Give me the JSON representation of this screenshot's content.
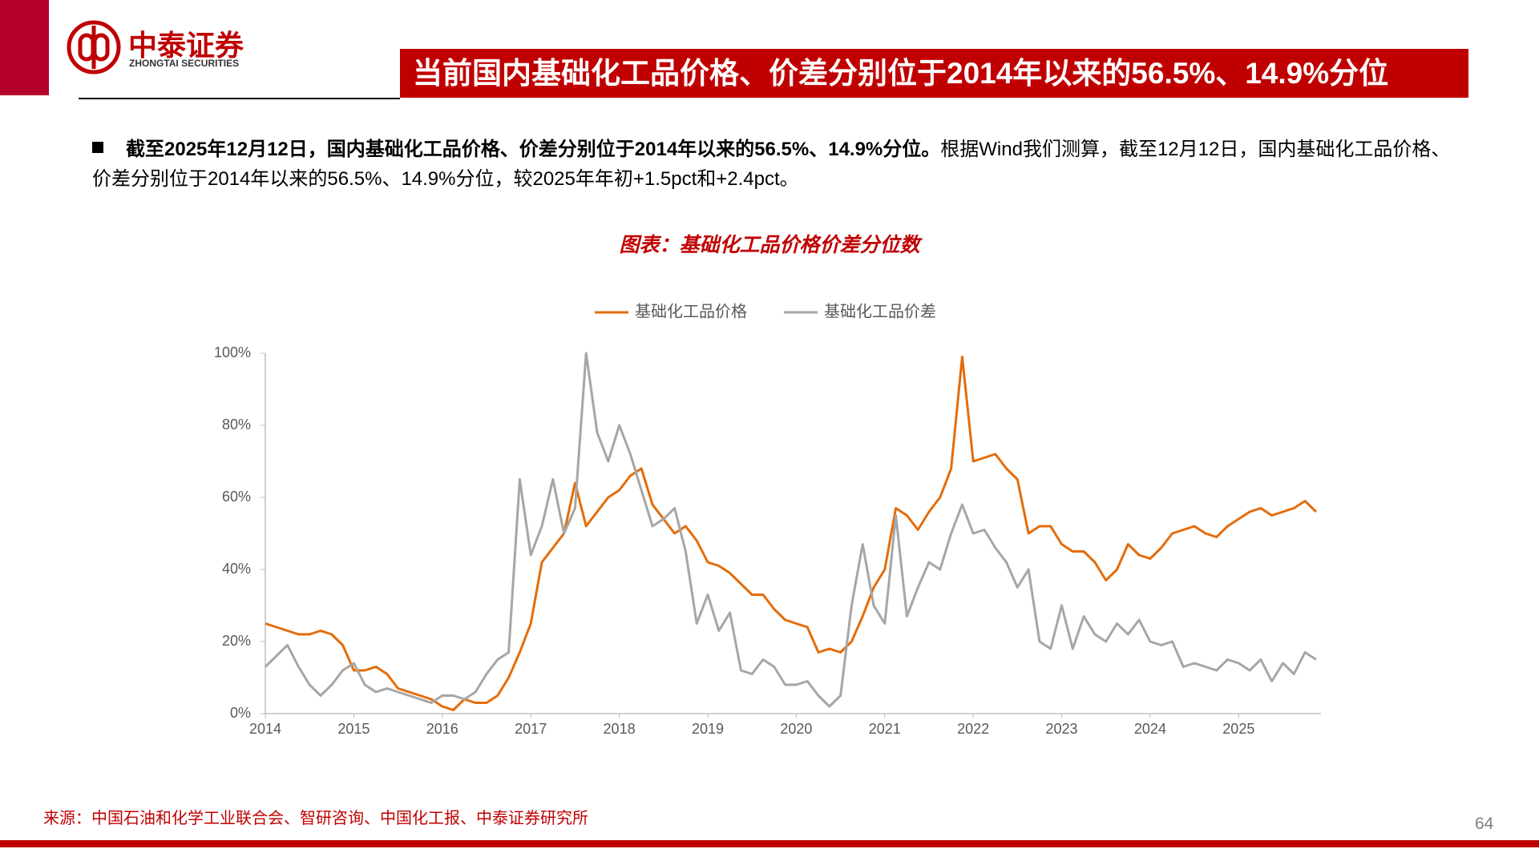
{
  "header": {
    "company": "中泰证券",
    "company_en": "ZHONGTAI SECURITIES",
    "title": "当前国内基础化工品价格、价差分别位于2014年以来的56.5%、14.9%分位"
  },
  "bullet": {
    "bold": "截至2025年12月12日，国内基础化工品价格、价差分别位于2014年以来的56.5%、14.9%分位。",
    "text": "根据Wind我们测算，截至12月12日，国内基础化工品价格、价差分别位于2014年以来的56.5%、14.9%分位，较2025年年初+1.5pct和+2.4pct。"
  },
  "chart_caption": "图表：基础化工品价格价差分位数",
  "source": "来源：中国石油和化学工业联合会、智研咨询、中国化工报、中泰证券研究所",
  "page_number": "64",
  "chart_data": {
    "type": "line",
    "x": [
      2014,
      2014.125,
      2014.25,
      2014.375,
      2014.5,
      2014.625,
      2014.75,
      2014.875,
      2015,
      2015.125,
      2015.25,
      2015.375,
      2015.5,
      2015.625,
      2015.75,
      2015.875,
      2016,
      2016.125,
      2016.25,
      2016.375,
      2016.5,
      2016.625,
      2016.75,
      2016.875,
      2017,
      2017.125,
      2017.25,
      2017.375,
      2017.5,
      2017.625,
      2017.75,
      2017.875,
      2018,
      2018.125,
      2018.25,
      2018.375,
      2018.5,
      2018.625,
      2018.75,
      2018.875,
      2019,
      2019.125,
      2019.25,
      2019.375,
      2019.5,
      2019.625,
      2019.75,
      2019.875,
      2020,
      2020.125,
      2020.25,
      2020.375,
      2020.5,
      2020.625,
      2020.75,
      2020.875,
      2021,
      2021.125,
      2021.25,
      2021.375,
      2021.5,
      2021.625,
      2021.75,
      2021.875,
      2022,
      2022.125,
      2022.25,
      2022.375,
      2022.5,
      2022.625,
      2022.75,
      2022.875,
      2023,
      2023.125,
      2023.25,
      2023.375,
      2023.5,
      2023.625,
      2023.75,
      2023.875,
      2024,
      2024.125,
      2024.25,
      2024.375,
      2024.5,
      2024.625,
      2024.75,
      2024.875,
      2025,
      2025.125,
      2025.25,
      2025.375,
      2025.5,
      2025.625,
      2025.75,
      2025.875
    ],
    "series": [
      {
        "name": "基础化工品价格",
        "color": "#e46c0a",
        "values": [
          25,
          24,
          23,
          22,
          22,
          23,
          22,
          19,
          12,
          12,
          13,
          11,
          7,
          6,
          5,
          4,
          2,
          1,
          4,
          3,
          3,
          5,
          10,
          17,
          25,
          42,
          46,
          50,
          64,
          52,
          56,
          60,
          62,
          66,
          68,
          58,
          54,
          50,
          52,
          48,
          42,
          41,
          39,
          36,
          33,
          33,
          29,
          26,
          25,
          24,
          17,
          18,
          17,
          20,
          27,
          35,
          40,
          57,
          55,
          51,
          56,
          60,
          68,
          99,
          70,
          71,
          72,
          68,
          65,
          50,
          52,
          52,
          47,
          45,
          45,
          42,
          37,
          40,
          47,
          44,
          43,
          46,
          50,
          51,
          52,
          50,
          49,
          52,
          54,
          56,
          57,
          55,
          56,
          57,
          59,
          56
        ]
      },
      {
        "name": "基础化工品价差",
        "color": "#a6a6a6",
        "values": [
          13,
          16,
          19,
          13,
          8,
          5,
          8,
          12,
          14,
          8,
          6,
          7,
          6,
          5,
          4,
          3,
          5,
          5,
          4,
          6,
          11,
          15,
          17,
          65,
          44,
          52,
          65,
          50,
          57,
          100,
          78,
          70,
          80,
          72,
          62,
          52,
          54,
          57,
          45,
          25,
          33,
          23,
          28,
          12,
          11,
          15,
          13,
          8,
          8,
          9,
          5,
          2,
          5,
          30,
          47,
          30,
          25,
          55,
          27,
          35,
          42,
          40,
          50,
          58,
          50,
          51,
          46,
          42,
          35,
          40,
          20,
          18,
          30,
          18,
          27,
          22,
          20,
          25,
          22,
          26,
          20,
          19,
          20,
          13,
          14,
          13,
          12,
          15,
          14,
          12,
          15,
          9,
          14,
          11,
          17,
          15
        ]
      }
    ],
    "xlim": [
      2014,
      2025.93
    ],
    "xticks": [
      2014,
      2015,
      2016,
      2017,
      2018,
      2019,
      2020,
      2021,
      2022,
      2023,
      2024,
      2025
    ],
    "ylim": [
      0,
      100
    ],
    "yticks": [
      {
        "value": 0,
        "label": "0%"
      },
      {
        "value": 20,
        "label": "20%"
      },
      {
        "value": 40,
        "label": "40%"
      },
      {
        "value": 60,
        "label": "60%"
      },
      {
        "value": 80,
        "label": "80%"
      },
      {
        "value": 100,
        "label": "100%"
      }
    ],
    "legend": "top"
  }
}
